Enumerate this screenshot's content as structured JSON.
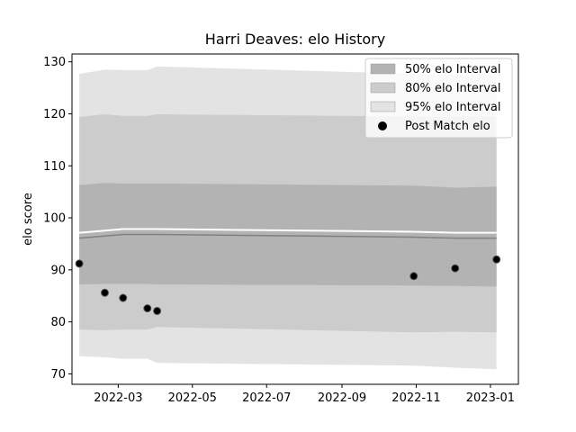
{
  "chart_data": {
    "type": "area",
    "title": "Harri Deaves: elo History",
    "xlabel": "",
    "ylabel": "elo score",
    "ylim": [
      68,
      131.5
    ],
    "xlim": [
      "2022-01-22",
      "2023-01-24"
    ],
    "x_ticks": [
      "2022-03-01",
      "2022-05-01",
      "2022-07-01",
      "2022-09-01",
      "2022-11-01",
      "2023-01-01"
    ],
    "x_tick_labels": [
      "2022-03",
      "2022-05",
      "2022-07",
      "2022-09",
      "2022-11",
      "2023-01"
    ],
    "y_ticks": [
      70,
      80,
      90,
      100,
      110,
      120,
      130
    ],
    "y_tick_labels": [
      "70",
      "80",
      "90",
      "100",
      "110",
      "120",
      "130"
    ],
    "grid": false,
    "legend_position": "top-right",
    "colors": {
      "band_50": "#b3b3b3",
      "band_80": "#cccccc",
      "band_95": "#e3e3e3",
      "mean_line": "#808080",
      "points": "#000000"
    },
    "dates": [
      "2022-01-28",
      "2022-02-18",
      "2022-03-05",
      "2022-03-25",
      "2022-04-02",
      "2022-10-30",
      "2022-12-03",
      "2023-01-06"
    ],
    "mean": [
      96.1,
      96.5,
      96.8,
      96.8,
      96.8,
      96.3,
      96.1,
      96.1
    ],
    "band_50": {
      "lower": [
        87.2,
        87.3,
        87.3,
        87.3,
        87.2,
        87.0,
        86.9,
        86.8
      ],
      "upper": [
        106.3,
        106.7,
        106.6,
        106.6,
        106.6,
        106.2,
        105.8,
        106.0
      ]
    },
    "band_80": {
      "lower": [
        78.5,
        78.4,
        78.5,
        78.5,
        79.0,
        78.0,
        78.1,
        78.0
      ],
      "upper": [
        119.4,
        119.9,
        119.6,
        119.6,
        119.9,
        119.5,
        119.5,
        119.5
      ]
    },
    "band_95": {
      "lower": [
        73.4,
        73.2,
        72.9,
        72.9,
        72.1,
        71.6,
        71.2,
        70.9
      ],
      "upper": [
        127.7,
        128.5,
        128.4,
        128.4,
        129.1,
        127.7,
        127.5,
        127.5
      ]
    },
    "series": [
      {
        "name": "Post Match elo",
        "type": "scatter",
        "x": [
          "2022-01-28",
          "2022-02-18",
          "2022-03-05",
          "2022-03-25",
          "2022-04-02",
          "2022-10-30",
          "2022-12-03",
          "2023-01-06"
        ],
        "values": [
          91.2,
          85.6,
          84.6,
          82.6,
          82.1,
          88.8,
          90.3,
          92.0
        ]
      }
    ],
    "legend": [
      {
        "label": "50% elo Interval",
        "kind": "patch",
        "color": "#b3b3b3"
      },
      {
        "label": "80% elo Interval",
        "kind": "patch",
        "color": "#cccccc"
      },
      {
        "label": "95% elo Interval",
        "kind": "patch",
        "color": "#e3e3e3"
      },
      {
        "label": "Post Match elo",
        "kind": "marker",
        "color": "#000000"
      }
    ]
  }
}
